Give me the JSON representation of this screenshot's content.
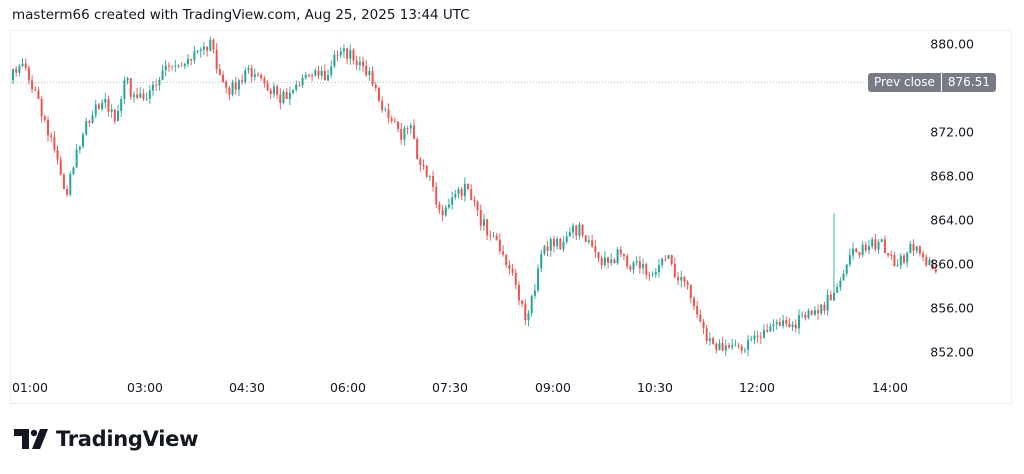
{
  "header": {
    "attribution": "masterm66 created with TradingView.com, Aug 25, 2025 13:44 UTC"
  },
  "brand": {
    "name": "TradingView",
    "icon": "tradingview-logo-icon"
  },
  "colors": {
    "up": "#26a69a",
    "down": "#ef5350",
    "prev_close_badge": "#787b86"
  },
  "chart_data": {
    "type": "candlestick",
    "title": "",
    "y_ticks": [
      "880.00",
      "872.00",
      "868.00",
      "864.00",
      "860.00",
      "856.00",
      "852.00"
    ],
    "x_ticks": [
      "01:00",
      "03:00",
      "04:30",
      "06:00",
      "07:30",
      "09:00",
      "10:30",
      "12:00",
      "14:00"
    ],
    "ylim": [
      850,
      882
    ],
    "grid": false,
    "prev_close": {
      "label": "Prev close",
      "value": "876.51"
    },
    "approx_closes": [
      876.7,
      878,
      876.7,
      875,
      871.7,
      869.5,
      866.3,
      870.4,
      873,
      874.5,
      875,
      873,
      876.7,
      875.4,
      875,
      876.3,
      877.6,
      878,
      878,
      878.5,
      879.5,
      880.4,
      877.2,
      875.4,
      876.7,
      877.8,
      877.2,
      875.8,
      875.4,
      875,
      876.3,
      877.2,
      877.6,
      876.7,
      879,
      879.6,
      878.5,
      878,
      876.3,
      874,
      873,
      871.3,
      872.6,
      869,
      868,
      864.9,
      865.4,
      866.8,
      866.8,
      864.9,
      862.6,
      862.2,
      859.9,
      858.1,
      854.9,
      857.6,
      861.6,
      861.6,
      862,
      863.5,
      862.6,
      861.6,
      859.9,
      860.4,
      860.9,
      859.5,
      859.6,
      859,
      859.9,
      860.8,
      858.5,
      858.1,
      855.4,
      853,
      852.2,
      852.6,
      852.6,
      852.2,
      853.5,
      854,
      854.5,
      854.9,
      854.5,
      855.4,
      855.4,
      856.3,
      856.7,
      858.5,
      860.8,
      860.8,
      861.6,
      862,
      860.8,
      859.9,
      861,
      861.6,
      859.9,
      859.3
    ],
    "notable_wick_highs": [
      {
        "index": 87,
        "high": 864.6
      }
    ],
    "session_low": 851.0,
    "session_high": 880.9
  }
}
